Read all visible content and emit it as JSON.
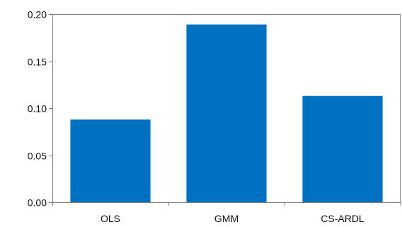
{
  "chart_data": {
    "type": "bar",
    "categories": [
      "OLS",
      "GMM",
      "CS-ARDL"
    ],
    "values": [
      0.088,
      0.189,
      0.113
    ],
    "title": "",
    "xlabel": "",
    "ylabel": "",
    "ylim": [
      0,
      0.2
    ],
    "yticks": [
      "0.00",
      "0.05",
      "0.10",
      "0.15",
      "0.20"
    ],
    "grid": false,
    "legend": "none",
    "bar_color": "#0070C0",
    "axis_color": "#7F7F7F"
  }
}
